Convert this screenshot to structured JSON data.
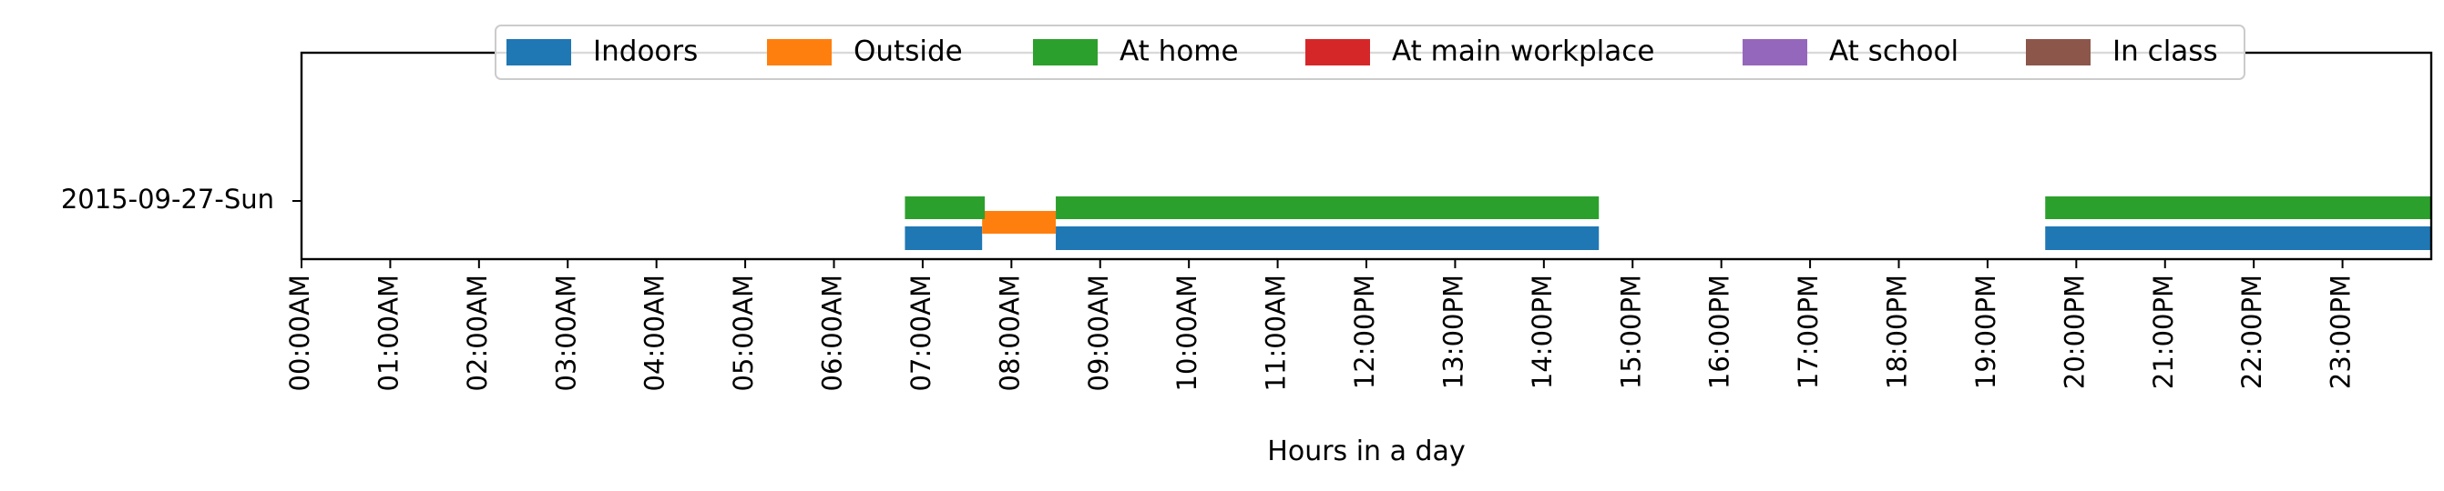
{
  "chart_data": {
    "type": "timeline",
    "xlabel": "Hours in a day",
    "ylabel": "",
    "xlim": [
      0,
      24
    ],
    "x_tick_labels": [
      "00:00AM",
      "01:00AM",
      "02:00AM",
      "03:00AM",
      "04:00AM",
      "05:00AM",
      "06:00AM",
      "07:00AM",
      "08:00AM",
      "09:00AM",
      "10:00AM",
      "11:00AM",
      "12:00PM",
      "13:00PM",
      "14:00PM",
      "15:00PM",
      "16:00PM",
      "17:00PM",
      "18:00PM",
      "19:00PM",
      "20:00PM",
      "21:00PM",
      "22:00PM",
      "23:00PM"
    ],
    "rows": [
      "2015-09-27-Sun"
    ],
    "legend_position": "top-center",
    "legend": [
      {
        "name": "Indoors",
        "color": "#1f77b4"
      },
      {
        "name": "Outside",
        "color": "#ff7f0e"
      },
      {
        "name": "At home",
        "color": "#2ca02c"
      },
      {
        "name": "At main workplace",
        "color": "#d62728"
      },
      {
        "name": "At school",
        "color": "#9467bd"
      },
      {
        "name": "In class",
        "color": "#8c564b"
      }
    ],
    "series": [
      {
        "name": "Indoors",
        "color": "#1f77b4",
        "row": "2015-09-27-Sun",
        "lane": "lower",
        "intervals": [
          [
            6.8,
            7.67
          ],
          [
            8.5,
            14.62
          ],
          [
            19.65,
            24.0
          ]
        ]
      },
      {
        "name": "Outside",
        "color": "#ff7f0e",
        "row": "2015-09-27-Sun",
        "lane": "middle",
        "intervals": [
          [
            7.67,
            8.5
          ]
        ]
      },
      {
        "name": "At home",
        "color": "#2ca02c",
        "row": "2015-09-27-Sun",
        "lane": "upper",
        "intervals": [
          [
            6.8,
            7.7
          ],
          [
            8.5,
            14.62
          ],
          [
            19.65,
            24.0
          ]
        ]
      }
    ]
  }
}
